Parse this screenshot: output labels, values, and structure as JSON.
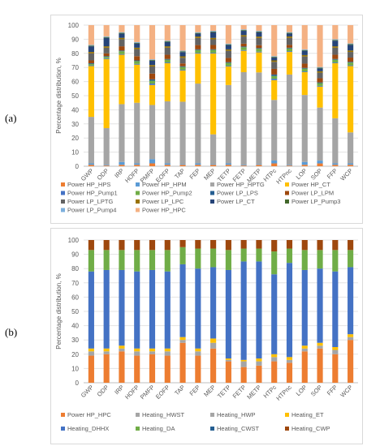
{
  "panels": [
    {
      "label": "(a)"
    },
    {
      "label": "(b)"
    }
  ],
  "chart_data": [
    {
      "type": "bar",
      "stacked": true,
      "title": "",
      "xlabel": "",
      "ylabel": "Percentage distribution, %",
      "ylim": [
        0,
        100
      ],
      "yticks": [
        0,
        10,
        20,
        30,
        40,
        50,
        60,
        70,
        80,
        90,
        100
      ],
      "grid": true,
      "legend_position": "bottom",
      "categories": [
        "GWP",
        "ODP",
        "IRP",
        "HOFP",
        "PMFP",
        "EOFP",
        "TAP",
        "FEP",
        "MEP",
        "TETP",
        "FETP",
        "METP",
        "HTPc",
        "HTPnc",
        "LOP",
        "SOP",
        "FFP",
        "WCP"
      ],
      "series": [
        {
          "name": "Power HP_HPS",
          "color": "#ed7d31",
          "values": [
            1,
            0.5,
            1,
            1,
            2,
            1,
            1,
            1,
            1,
            1,
            0.5,
            1,
            2,
            0.5,
            1,
            2,
            1,
            1
          ]
        },
        {
          "name": "Power HP_HPM",
          "color": "#5b9bd5",
          "values": [
            1,
            0.5,
            2,
            1,
            3,
            1,
            0.5,
            1,
            0.5,
            1,
            0.5,
            0.5,
            2,
            0.5,
            2,
            2,
            1,
            1
          ]
        },
        {
          "name": "Power HP_HPTG",
          "color": "#a5a5a5",
          "values": [
            33,
            26,
            41,
            43,
            38,
            44,
            44,
            56,
            21,
            55,
            65,
            64,
            43,
            64,
            47,
            38,
            32,
            22
          ]
        },
        {
          "name": "Power HP_CT",
          "color": "#ffc000",
          "values": [
            36,
            49,
            35,
            27,
            14,
            27,
            22,
            21,
            57,
            13,
            15,
            14,
            14,
            16,
            16,
            15,
            39,
            47
          ]
        },
        {
          "name": "Power HP_Pump1",
          "color": "#4472c4",
          "values": [
            0.5,
            0.5,
            0.5,
            0.5,
            1,
            0.5,
            0.5,
            0.5,
            0.5,
            0.5,
            0.5,
            0.5,
            1,
            0.5,
            0.5,
            0.5,
            0.5,
            0.5
          ]
        },
        {
          "name": "Power HP_Pump2",
          "color": "#70ad47",
          "values": [
            1,
            1,
            2,
            2,
            2,
            2,
            2,
            2,
            2,
            2,
            2,
            2,
            2,
            2,
            2,
            2,
            2,
            2
          ]
        },
        {
          "name": "Power LP_LPS",
          "color": "#255e91",
          "values": [
            0.5,
            0.5,
            0.5,
            0.5,
            1,
            0.5,
            0.5,
            0.5,
            0.5,
            0.5,
            0.5,
            0.5,
            1,
            0.5,
            0.5,
            0.5,
            0.5,
            0.5
          ]
        },
        {
          "name": "Power LP_LPM",
          "color": "#9e480e",
          "values": [
            2,
            2,
            3,
            3,
            4,
            3,
            2,
            3,
            3,
            3,
            2,
            2,
            4,
            2,
            3,
            3,
            3,
            3
          ]
        },
        {
          "name": "Power LP_LPTG",
          "color": "#636363",
          "values": [
            5,
            4,
            5,
            5,
            5,
            5,
            4,
            5,
            4,
            5,
            5,
            5,
            5,
            5,
            5,
            4,
            5,
            4
          ]
        },
        {
          "name": "Power LP_LPC",
          "color": "#997300",
          "values": [
            1,
            1,
            1,
            1,
            1,
            1,
            1,
            1,
            1,
            1,
            1,
            1,
            1,
            1,
            1,
            1,
            1,
            1
          ]
        },
        {
          "name": "Power LP_CT",
          "color": "#264478",
          "values": [
            4,
            6,
            3,
            3,
            3,
            3,
            3,
            2,
            4,
            3,
            3,
            3,
            2,
            2,
            3,
            2,
            4,
            4
          ]
        },
        {
          "name": "Power LP_Pump3",
          "color": "#43682b",
          "values": [
            0.5,
            0.5,
            0.5,
            0.5,
            0.5,
            0.5,
            0.5,
            0.5,
            0.5,
            0.5,
            0.5,
            0.5,
            0.5,
            0.5,
            0.5,
            0.5,
            0.5,
            0.5
          ]
        },
        {
          "name": "Power LP_Pump4",
          "color": "#7cafdd",
          "values": [
            0.5,
            0.5,
            0.5,
            0.5,
            0.5,
            0.5,
            0.5,
            0.5,
            0.5,
            0.5,
            0.5,
            0.5,
            0.5,
            0.5,
            0.5,
            0.5,
            0.5,
            0.5
          ]
        },
        {
          "name": "Power HP_HPC",
          "color": "#f4b183",
          "values": [
            14,
            8,
            5,
            12,
            24,
            11,
            18,
            5,
            4,
            13,
            3,
            4,
            22,
            5,
            17,
            30,
            10,
            13
          ]
        }
      ]
    },
    {
      "type": "bar",
      "stacked": true,
      "title": "",
      "xlabel": "",
      "ylabel": "Percentage distribution, %",
      "ylim": [
        0,
        100
      ],
      "yticks": [
        0,
        10,
        20,
        30,
        40,
        50,
        60,
        70,
        80,
        90,
        100
      ],
      "grid": true,
      "legend_position": "bottom",
      "categories": [
        "GWP",
        "ODP",
        "IRP",
        "HOFP",
        "PMFP",
        "EOFP",
        "TAP",
        "FEP",
        "MEP",
        "TETP",
        "FETP",
        "METP",
        "HTPc",
        "HTPnc",
        "LOP",
        "SOP",
        "FFP",
        "WCP"
      ],
      "series": [
        {
          "name": "Power HP_HPC",
          "color": "#ed7d31",
          "values": [
            19,
            20,
            22,
            19,
            20,
            19,
            28,
            19,
            24,
            15,
            11,
            12,
            15,
            14,
            22,
            24,
            20,
            30
          ]
        },
        {
          "name": "Heating_HWST",
          "color": "#a5a5a5",
          "values": [
            3,
            2,
            2,
            3,
            2,
            3,
            2,
            3,
            4,
            1,
            4,
            3,
            3,
            2,
            2,
            2,
            3,
            2
          ]
        },
        {
          "name": "Heating_HWP",
          "color": "#a5a5a5",
          "values": [
            0,
            0,
            0,
            0,
            0,
            0,
            0,
            0,
            0,
            0,
            0,
            0,
            0,
            0,
            0,
            0,
            0,
            0
          ]
        },
        {
          "name": "Heating_ET",
          "color": "#ffc000",
          "values": [
            2,
            2,
            2,
            2,
            2,
            2,
            2,
            2,
            3,
            1,
            1,
            2,
            2,
            2,
            2,
            2,
            2,
            2
          ]
        },
        {
          "name": "Heating_DHHX",
          "color": "#4472c4",
          "values": [
            54,
            55,
            53,
            54,
            55,
            54,
            51,
            56,
            50,
            62,
            69,
            68,
            56,
            66,
            53,
            52,
            53,
            47
          ]
        },
        {
          "name": "Heating_DA",
          "color": "#70ad47",
          "values": [
            15,
            14,
            14,
            15,
            14,
            15,
            12,
            14,
            13,
            14,
            9,
            9,
            16,
            10,
            14,
            13,
            15,
            12
          ]
        },
        {
          "name": "Heating_CWST",
          "color": "#255e91",
          "values": [
            0,
            0,
            0,
            0,
            0,
            0,
            0,
            0,
            0,
            0,
            0,
            0,
            0,
            0,
            0,
            0,
            0,
            0
          ]
        },
        {
          "name": "Heating_CWP",
          "color": "#9e480e",
          "values": [
            7,
            7,
            7,
            7,
            7,
            7,
            5,
            6,
            6,
            7,
            6,
            6,
            8,
            6,
            7,
            7,
            7,
            7
          ]
        }
      ]
    }
  ]
}
